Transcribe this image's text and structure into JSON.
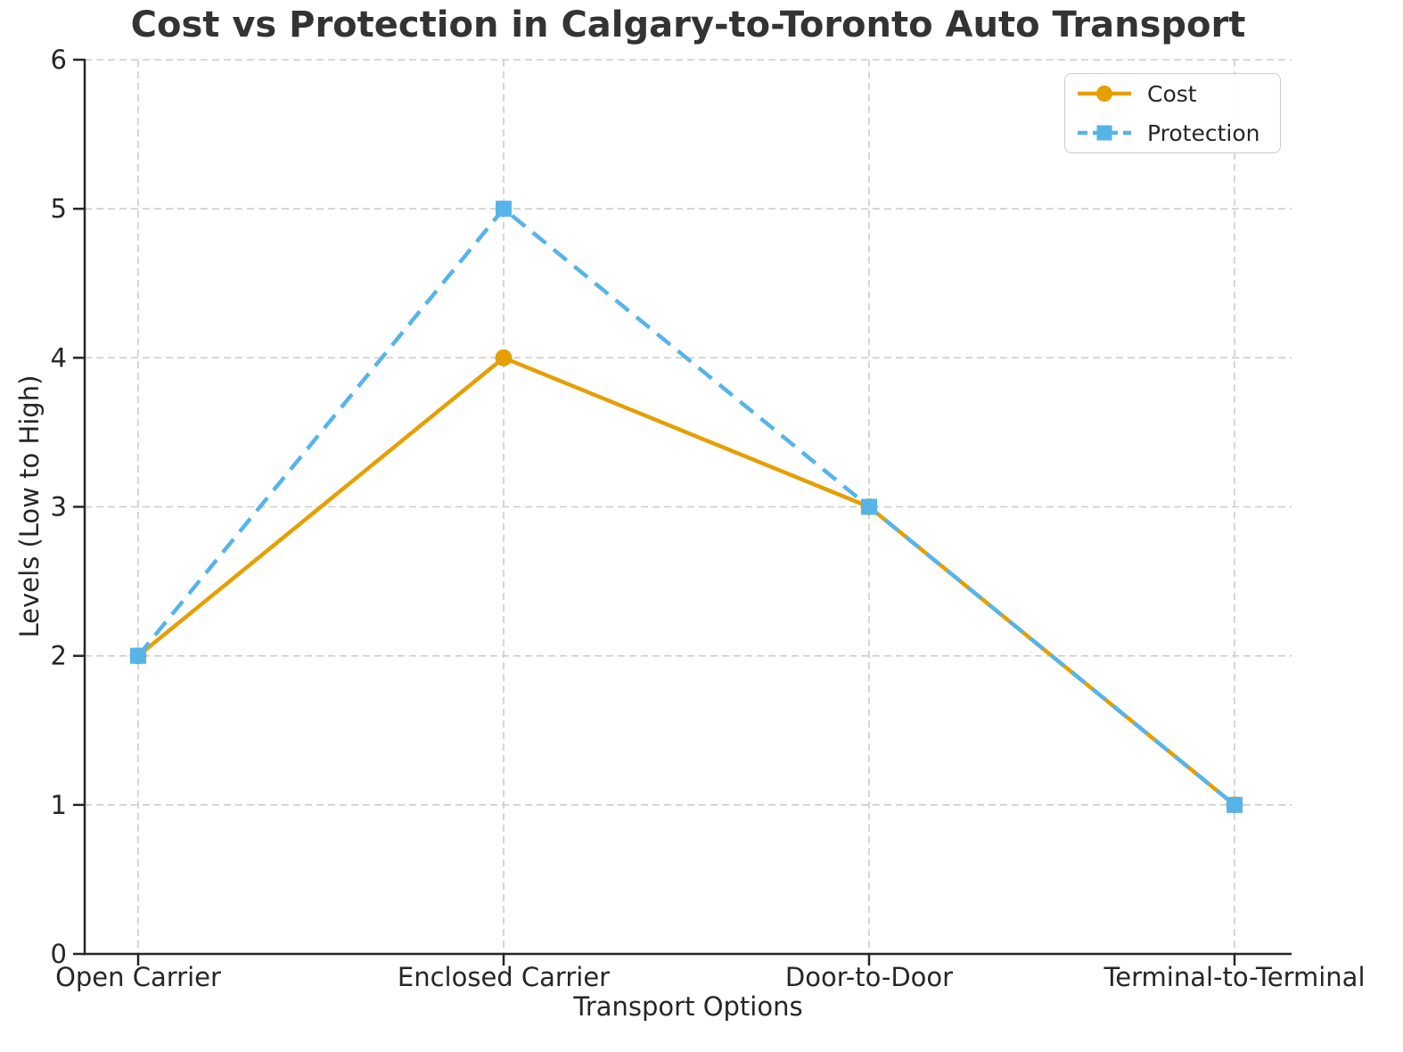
{
  "chart_data": {
    "type": "line",
    "title": "Cost vs Protection in Calgary-to-Toronto Auto Transport",
    "xlabel": "Transport Options",
    "ylabel": "Levels (Low to High)",
    "categories": [
      "Open Carrier",
      "Enclosed Carrier",
      "Door-to-Door",
      "Terminal-to-Terminal"
    ],
    "series": [
      {
        "name": "Cost",
        "values": [
          2,
          4,
          3,
          1
        ],
        "color": "#E69F00",
        "line_style": "solid",
        "marker": "circle"
      },
      {
        "name": "Protection",
        "values": [
          2,
          5,
          3,
          1
        ],
        "color": "#56B4E9",
        "line_style": "dashed",
        "marker": "square"
      }
    ],
    "ylim": [
      0,
      6
    ],
    "yticks": [
      0,
      1,
      2,
      3,
      4,
      5,
      6
    ],
    "grid": true,
    "legend_position": "top-right"
  },
  "colors": {
    "background": "#ffffff",
    "grid": "#cccccc",
    "axis": "#262626",
    "tick_text": "#262626",
    "title_text": "#333333",
    "legend_border": "#cccccc"
  }
}
